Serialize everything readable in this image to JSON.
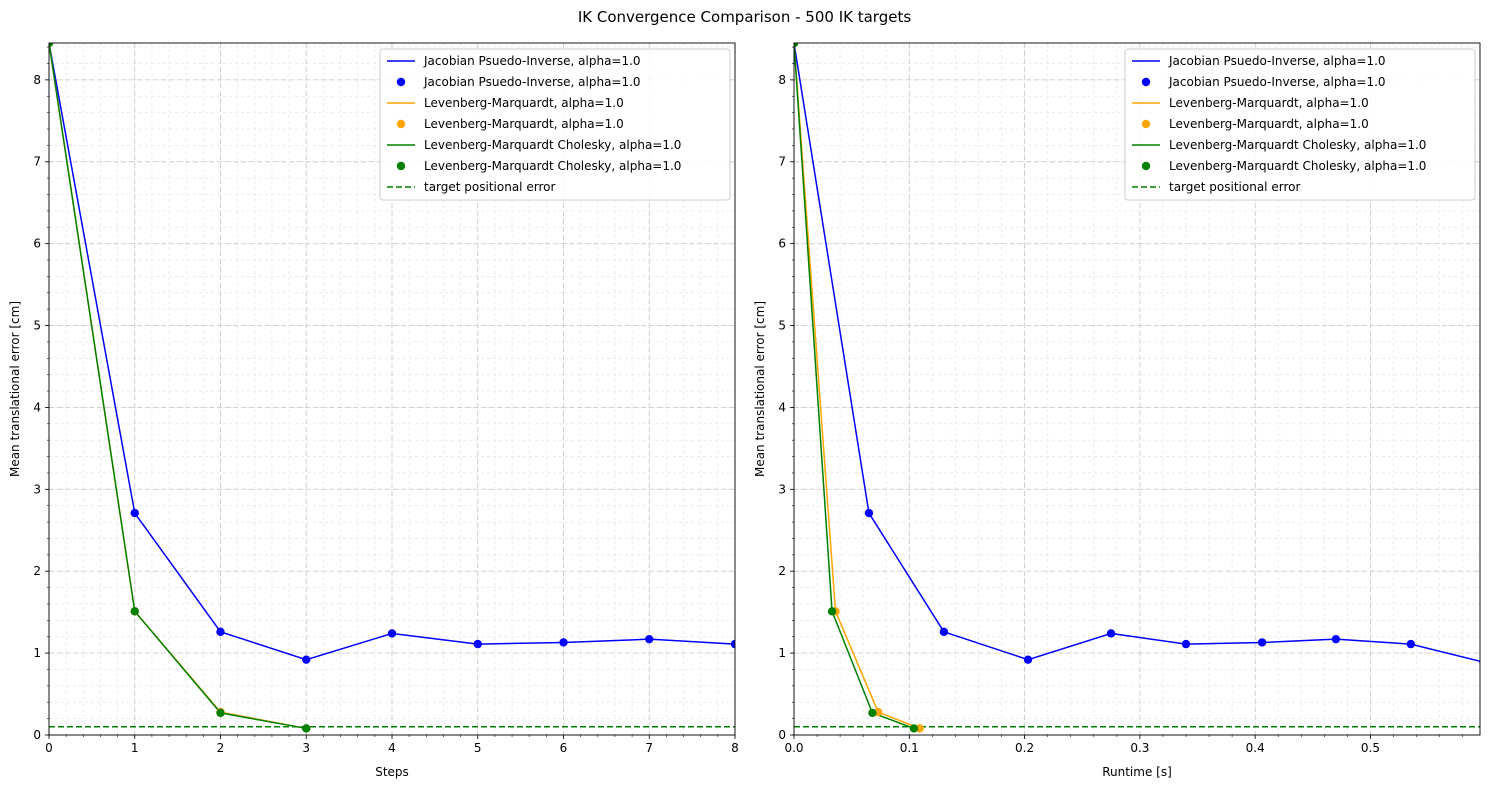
{
  "figure": {
    "title": "IK Convergence Comparison - 500 IK targets"
  },
  "chart_data": [
    {
      "type": "line",
      "xlabel": "Steps",
      "ylabel": "Mean translational error [cm]",
      "xlim": [
        0,
        8
      ],
      "ylim": [
        0,
        8.45
      ],
      "xticks": [
        "0",
        "1",
        "2",
        "3",
        "4",
        "5",
        "6",
        "7",
        "8"
      ],
      "yticks": [
        "0",
        "1",
        "2",
        "3",
        "4",
        "5",
        "6",
        "7",
        "8"
      ],
      "grid": true,
      "legend_position": "top-right",
      "target_positional_error": 0.1,
      "series": [
        {
          "name": "Jacobian Psuedo-Inverse, alpha=1.0",
          "color": "#0000ff",
          "x": [
            0,
            1,
            2,
            3,
            4,
            5,
            6,
            7,
            8
          ],
          "y": [
            8.45,
            2.71,
            1.26,
            0.92,
            1.24,
            1.11,
            1.13,
            1.17,
            1.11
          ]
        },
        {
          "name": "Levenberg-Marquardt, alpha=1.0",
          "color": "#ffa500",
          "x": [
            0,
            1,
            2,
            3
          ],
          "y": [
            8.45,
            1.51,
            0.28,
            0.08
          ]
        },
        {
          "name": "Levenberg-Marquardt Cholesky, alpha=1.0",
          "color": "#008000",
          "x": [
            0,
            1,
            2,
            3
          ],
          "y": [
            8.45,
            1.51,
            0.27,
            0.08
          ]
        }
      ],
      "target_legend": "target positional error",
      "target_color": "#008000"
    },
    {
      "type": "line",
      "xlabel": "Runtime [s]",
      "ylabel": "Mean translational error [cm]",
      "xlim": [
        0,
        0.595
      ],
      "ylim": [
        0,
        8.45
      ],
      "xticks": [
        "0.0",
        "0.1",
        "0.2",
        "0.3",
        "0.4",
        "0.5"
      ],
      "xtick_values": [
        0,
        0.1,
        0.2,
        0.3,
        0.4,
        0.5
      ],
      "yticks": [
        "0",
        "1",
        "2",
        "3",
        "4",
        "5",
        "6",
        "7",
        "8"
      ],
      "grid": true,
      "legend_position": "top-right",
      "target_positional_error": 0.1,
      "series": [
        {
          "name": "Jacobian Psuedo-Inverse, alpha=1.0",
          "color": "#0000ff",
          "x": [
            0,
            0.065,
            0.13,
            0.203,
            0.275,
            0.34,
            0.406,
            0.47,
            0.535,
            0.598
          ],
          "y": [
            8.45,
            2.71,
            1.26,
            0.92,
            1.24,
            1.11,
            1.13,
            1.17,
            1.11,
            0.89
          ]
        },
        {
          "name": "Levenberg-Marquardt, alpha=1.0",
          "color": "#ffa500",
          "x": [
            0,
            0.036,
            0.073,
            0.109
          ],
          "y": [
            8.45,
            1.51,
            0.28,
            0.08
          ]
        },
        {
          "name": "Levenberg-Marquardt Cholesky, alpha=1.0",
          "color": "#008000",
          "x": [
            0,
            0.033,
            0.068,
            0.104
          ],
          "y": [
            8.45,
            1.51,
            0.27,
            0.08
          ]
        }
      ],
      "target_legend": "target positional error",
      "target_color": "#008000"
    }
  ]
}
